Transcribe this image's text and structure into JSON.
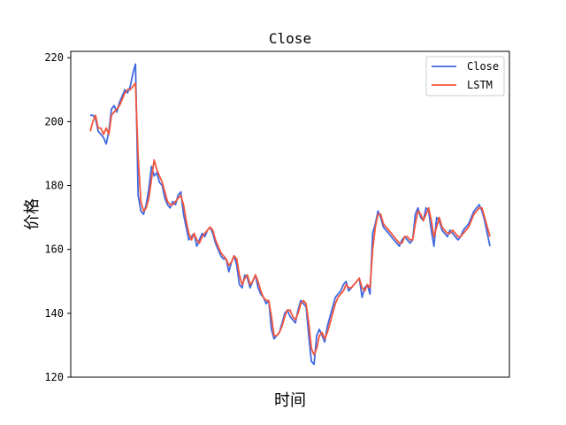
{
  "chart_data": {
    "type": "line",
    "title": "Close",
    "xlabel": "时间",
    "ylabel": "价格",
    "ylim": [
      120,
      222
    ],
    "yticks": [
      120,
      140,
      160,
      180,
      200,
      220
    ],
    "grid": false,
    "legend_position": "top-right",
    "x": [
      0,
      1,
      2,
      3,
      4,
      5,
      6,
      7,
      8,
      9,
      10,
      11,
      12,
      13,
      14,
      15,
      16,
      17,
      18,
      19,
      20,
      21,
      22,
      23,
      24,
      25,
      26,
      27,
      28,
      29,
      30,
      31,
      32,
      33,
      34,
      35,
      36,
      37,
      38,
      39,
      40,
      41,
      42,
      43,
      44,
      45,
      46,
      47,
      48,
      49,
      50,
      51,
      52,
      53,
      54,
      55,
      56,
      57,
      58,
      59,
      60,
      61,
      62,
      63,
      64,
      65,
      66,
      67,
      68,
      69,
      70,
      71,
      72,
      73,
      74,
      75,
      76,
      77,
      78,
      79,
      80,
      81,
      82,
      83,
      84,
      85,
      86,
      87,
      88,
      89,
      90,
      91,
      92,
      93,
      94,
      95,
      96,
      97,
      98,
      99,
      100,
      101,
      102,
      103,
      104,
      105,
      106,
      107,
      108,
      109,
      110,
      111,
      112,
      113,
      114,
      115,
      116,
      117,
      118,
      119,
      120,
      121,
      122,
      123,
      124,
      125,
      126,
      127,
      128,
      129,
      130,
      131,
      132,
      133,
      134,
      135,
      136,
      137,
      138,
      139,
      140,
      141,
      142,
      143,
      144,
      145,
      146,
      147,
      148,
      149,
      150
    ],
    "series": [
      {
        "name": "Close",
        "color": "#4169E1",
        "values": [
          202,
          202,
          201,
          197,
          196,
          195,
          193,
          197,
          204,
          205,
          203,
          206,
          208,
          210,
          209,
          211,
          215,
          218,
          177,
          172,
          171,
          174,
          179,
          186,
          183,
          184,
          181,
          180,
          176,
          174,
          173,
          175,
          174,
          177,
          178,
          171,
          167,
          163,
          164,
          165,
          161,
          163,
          165,
          164,
          166,
          167,
          165,
          162,
          160,
          158,
          157,
          157,
          153,
          156,
          158,
          155,
          149,
          148,
          152,
          151,
          148,
          150,
          152,
          148,
          146,
          145,
          143,
          144,
          135,
          132,
          133,
          134,
          137,
          140,
          141,
          139,
          138,
          137,
          141,
          144,
          143,
          142,
          133,
          125,
          124,
          133,
          135,
          133,
          131,
          136,
          139,
          142,
          145,
          146,
          147,
          149,
          150,
          147,
          148,
          149,
          150,
          151,
          145,
          148,
          149,
          146,
          165,
          168,
          172,
          170,
          167,
          166,
          165,
          164,
          163,
          162,
          161,
          163,
          164,
          163,
          162,
          163,
          171,
          173,
          170,
          169,
          173,
          172,
          166,
          161,
          170,
          169,
          166,
          165,
          164,
          166,
          165,
          164,
          163,
          164,
          166,
          167,
          168,
          170,
          172,
          173,
          174,
          172,
          169,
          165,
          161
        ]
      },
      {
        "name": "LSTM",
        "color": "#F4553C",
        "values": [
          197,
          200,
          202,
          198,
          198,
          196,
          198,
          196,
          202,
          203,
          204,
          205,
          207,
          209,
          210,
          210,
          211,
          212,
          189,
          175,
          172,
          173,
          176,
          182,
          188,
          185,
          183,
          181,
          178,
          175,
          174,
          174,
          175,
          176,
          177,
          174,
          169,
          165,
          163,
          165,
          163,
          162,
          164,
          165,
          166,
          167,
          166,
          163,
          161,
          159,
          158,
          157,
          155,
          156,
          158,
          157,
          152,
          149,
          151,
          152,
          149,
          150,
          152,
          150,
          147,
          145,
          144,
          144,
          139,
          133,
          133,
          134,
          136,
          139,
          141,
          141,
          139,
          138,
          140,
          143,
          144,
          143,
          137,
          129,
          127,
          129,
          133,
          134,
          132,
          134,
          137,
          140,
          143,
          145,
          146,
          147,
          149,
          148,
          148,
          149,
          150,
          151,
          148,
          147,
          149,
          148,
          160,
          167,
          171,
          171,
          168,
          167,
          166,
          165,
          164,
          163,
          162,
          162,
          164,
          164,
          163,
          163,
          168,
          172,
          171,
          169,
          171,
          173,
          169,
          164,
          167,
          170,
          167,
          166,
          165,
          165,
          166,
          165,
          164,
          164,
          165,
          166,
          167,
          169,
          171,
          172,
          173,
          173,
          170,
          167,
          164
        ]
      }
    ]
  }
}
